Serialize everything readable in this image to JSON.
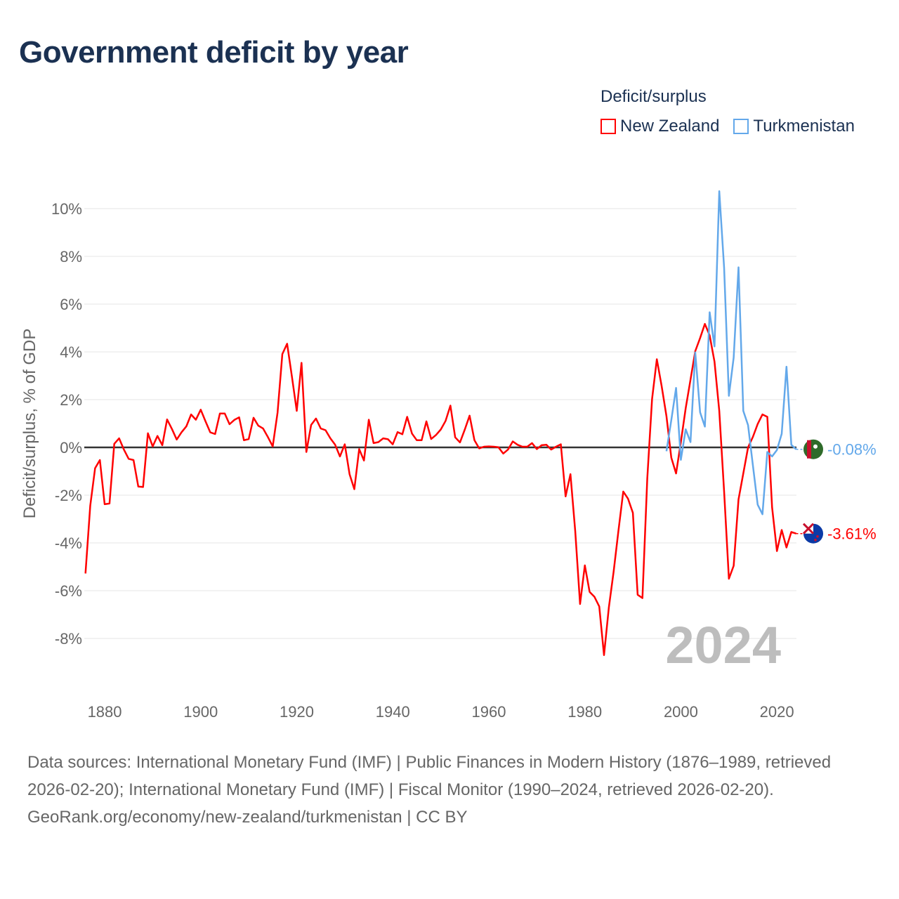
{
  "title": "Government deficit by year",
  "legend": {
    "title": "Deficit/surplus",
    "items": [
      {
        "label": "New Zealand",
        "color": "#ff0000"
      },
      {
        "label": "Turkmenistan",
        "color": "#63a8ea"
      }
    ]
  },
  "year_watermark": "2024",
  "footer": {
    "sources": "Data sources: International Monetary Fund (IMF) | Public Finances in Modern History (1876–1989, retrieved 2026-02-20); International Monetary Fund (IMF) | Fiscal Monitor (1990–2024, retrieved 2026-02-20).",
    "credit": "GeoRank.org/economy/new-zealand/turkmenistan | CC BY"
  },
  "chart_data": {
    "type": "line",
    "title": "Government deficit by year",
    "xlabel": "",
    "ylabel": "Deficit/surplus, % of GDP",
    "xlim": [
      1876,
      2024
    ],
    "ylim": [
      -10,
      11
    ],
    "grid": true,
    "legend_position": "top-right",
    "x_ticks": [
      1880,
      1900,
      1920,
      1940,
      1960,
      1980,
      2000,
      2020
    ],
    "y_ticks": [
      -8,
      -6,
      -4,
      -2,
      0,
      2,
      4,
      6,
      8,
      10
    ],
    "y_tick_labels": [
      "-8%",
      "-6%",
      "-4%",
      "-2%",
      "0%",
      "2%",
      "4%",
      "6%",
      "8%",
      "10%"
    ],
    "series": [
      {
        "name": "New Zealand",
        "color": "#ff0000",
        "start_year": 1876,
        "end_label": "-3.61%",
        "values": [
          -5.28,
          -2.44,
          -0.87,
          -0.53,
          -2.38,
          -2.35,
          0.15,
          0.38,
          -0.09,
          -0.48,
          -0.53,
          -1.64,
          -1.66,
          0.59,
          0.04,
          0.48,
          0.09,
          1.17,
          0.77,
          0.33,
          0.63,
          0.88,
          1.38,
          1.16,
          1.58,
          1.09,
          0.63,
          0.56,
          1.42,
          1.42,
          0.97,
          1.15,
          1.26,
          0.3,
          0.35,
          1.24,
          0.91,
          0.79,
          0.43,
          0.04,
          1.46,
          3.91,
          4.34,
          2.95,
          1.53,
          3.54,
          -0.19,
          0.94,
          1.21,
          0.79,
          0.72,
          0.38,
          0.11,
          -0.38,
          0.13,
          -1.12,
          -1.75,
          -0.07,
          -0.55,
          1.16,
          0.18,
          0.22,
          0.38,
          0.34,
          0.13,
          0.64,
          0.55,
          1.28,
          0.58,
          0.3,
          0.3,
          1.09,
          0.35,
          0.52,
          0.75,
          1.11,
          1.75,
          0.42,
          0.21,
          0.75,
          1.33,
          0.3,
          -0.04,
          0.03,
          0.04,
          0.03,
          0.01,
          -0.26,
          -0.09,
          0.25,
          0.11,
          0.03,
          0.03,
          0.18,
          -0.07,
          0.09,
          0.11,
          -0.09,
          0.03,
          0.13,
          -2.05,
          -1.12,
          -3.5,
          -6.56,
          -4.94,
          -6.05,
          -6.26,
          -6.66,
          -8.7,
          -6.7,
          -5.2,
          -3.5,
          -1.85,
          -2.15,
          -2.74,
          -6.17,
          -6.31,
          -1.3,
          2.02,
          3.69,
          2.56,
          1.31,
          -0.43,
          -1.09,
          0.22,
          1.64,
          2.83,
          4.03,
          4.58,
          5.17,
          4.69,
          3.59,
          1.53,
          -1.85,
          -5.5,
          -4.96,
          -2.18,
          -1.09,
          0.0,
          0.44,
          0.98,
          1.38,
          1.28,
          -2.51,
          -4.34,
          -3.46,
          -4.19,
          -3.54,
          -3.61
        ]
      },
      {
        "name": "Turkmenistan",
        "color": "#63a8ea",
        "start_year": 1997,
        "end_label": "-0.08%",
        "values": [
          -0.16,
          1.14,
          2.49,
          -0.52,
          0.76,
          0.22,
          3.98,
          1.47,
          0.87,
          5.66,
          4.23,
          10.73,
          7.52,
          2.16,
          3.76,
          7.54,
          1.53,
          0.93,
          -0.76,
          -2.4,
          -2.8,
          -0.19,
          -0.38,
          -0.11,
          0.57,
          3.38,
          0.11,
          -0.08
        ]
      }
    ]
  }
}
